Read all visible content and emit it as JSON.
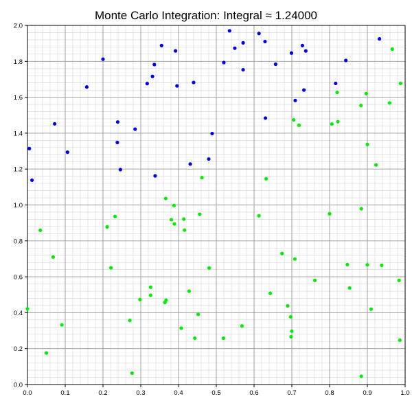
{
  "chart_data": {
    "type": "scatter",
    "title": "Monte Carlo Integration: Integral ≈ 1.24000",
    "xlabel": "",
    "ylabel": "",
    "xlim": [
      0,
      1
    ],
    "ylim": [
      0,
      2
    ],
    "grid": true,
    "x_ticks": [
      "0.0",
      "0.1",
      "0.2",
      "0.3",
      "0.4",
      "0.5",
      "0.6",
      "0.7",
      "0.8",
      "0.9",
      "1.0"
    ],
    "y_ticks": [
      "0.0",
      "0.2",
      "0.4",
      "0.6",
      "0.8",
      "1.0",
      "1.2",
      "1.4",
      "1.6",
      "1.8",
      "2.0"
    ],
    "colors": {
      "above": "#0000ee",
      "below": "#00ee00",
      "grid_major": "#999999",
      "grid_minor": "#d4d4d4"
    },
    "series": [
      {
        "color": "#0000ee",
        "points": [
          [
            0.535,
            1.97
          ],
          [
            0.613,
            1.955
          ],
          [
            0.932,
            1.925
          ],
          [
            0.355,
            1.888
          ],
          [
            0.571,
            1.903
          ],
          [
            0.629,
            1.91
          ],
          [
            0.728,
            1.888
          ],
          [
            0.549,
            1.873
          ],
          [
            0.392,
            1.858
          ],
          [
            0.737,
            1.858
          ],
          [
            0.699,
            1.846
          ],
          [
            0.2,
            1.812
          ],
          [
            0.843,
            1.805
          ],
          [
            0.336,
            1.782
          ],
          [
            0.52,
            1.793
          ],
          [
            0.657,
            1.784
          ],
          [
            0.571,
            1.753
          ],
          [
            0.331,
            1.716
          ],
          [
            0.317,
            1.676
          ],
          [
            0.44,
            1.682
          ],
          [
            0.396,
            1.663
          ],
          [
            0.157,
            1.657
          ],
          [
            0.816,
            1.677
          ],
          [
            0.732,
            1.64
          ],
          [
            0.709,
            1.582
          ],
          [
            0.63,
            1.484
          ],
          [
            0.072,
            1.452
          ],
          [
            0.239,
            1.462
          ],
          [
            0.285,
            1.422
          ],
          [
            0.489,
            1.398
          ],
          [
            0.238,
            1.348
          ],
          [
            0.005,
            1.314
          ],
          [
            0.106,
            1.294
          ],
          [
            0.48,
            1.256
          ],
          [
            0.431,
            1.228
          ],
          [
            0.246,
            1.197
          ],
          [
            0.338,
            1.162
          ],
          [
            0.012,
            1.138
          ]
        ]
      },
      {
        "color": "#00ee00",
        "points": [
          [
            0.966,
            1.868
          ],
          [
            0.82,
            1.627
          ],
          [
            0.897,
            1.62
          ],
          [
            0.959,
            1.568
          ],
          [
            0.988,
            1.677
          ],
          [
            0.883,
            1.554
          ],
          [
            0.705,
            1.474
          ],
          [
            0.719,
            1.444
          ],
          [
            0.806,
            1.451
          ],
          [
            0.822,
            1.464
          ],
          [
            0.9,
            1.337
          ],
          [
            0.923,
            1.223
          ],
          [
            0.462,
            1.152
          ],
          [
            0.632,
            1.146
          ],
          [
            0.366,
            1.036
          ],
          [
            0.388,
            0.997
          ],
          [
            0.884,
            0.979
          ],
          [
            0.456,
            0.948
          ],
          [
            0.613,
            0.94
          ],
          [
            0.8,
            0.951
          ],
          [
            0.232,
            0.936
          ],
          [
            0.414,
            0.921
          ],
          [
            0.381,
            0.918
          ],
          [
            0.389,
            0.894
          ],
          [
            0.211,
            0.878
          ],
          [
            0.034,
            0.859
          ],
          [
            0.416,
            0.86
          ],
          [
            0.674,
            0.73
          ],
          [
            0.068,
            0.71
          ],
          [
            0.708,
            0.699
          ],
          [
            0.847,
            0.668
          ],
          [
            0.9,
            0.667
          ],
          [
            0.938,
            0.664
          ],
          [
            0.221,
            0.65
          ],
          [
            0.481,
            0.649
          ],
          [
            0.761,
            0.58
          ],
          [
            0.984,
            0.58
          ],
          [
            0.853,
            0.538
          ],
          [
            0.326,
            0.542
          ],
          [
            0.428,
            0.52
          ],
          [
            0.643,
            0.508
          ],
          [
            0.326,
            0.497
          ],
          [
            0.298,
            0.473
          ],
          [
            0.367,
            0.47
          ],
          [
            0.364,
            0.457
          ],
          [
            0.689,
            0.438
          ],
          [
            0.0,
            0.422
          ],
          [
            0.91,
            0.42
          ],
          [
            0.452,
            0.391
          ],
          [
            0.697,
            0.377
          ],
          [
            0.271,
            0.357
          ],
          [
            0.091,
            0.332
          ],
          [
            0.568,
            0.326
          ],
          [
            0.407,
            0.314
          ],
          [
            0.7,
            0.297
          ],
          [
            0.698,
            0.266
          ],
          [
            0.443,
            0.258
          ],
          [
            0.519,
            0.258
          ],
          [
            0.986,
            0.247
          ],
          [
            0.05,
            0.176
          ],
          [
            0.277,
            0.063
          ],
          [
            0.884,
            0.046
          ]
        ]
      }
    ]
  }
}
